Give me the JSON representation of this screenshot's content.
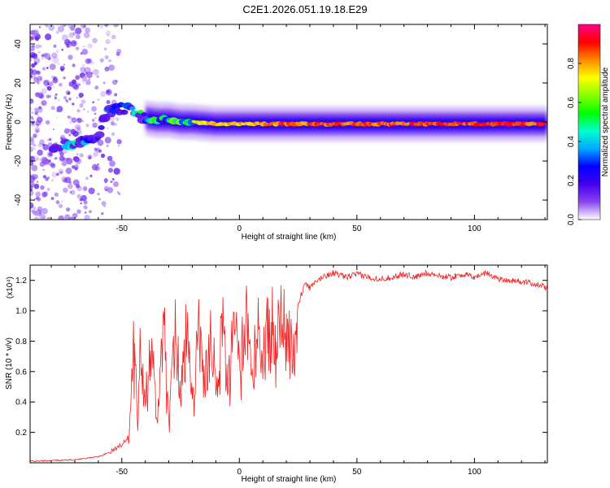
{
  "title": "C2E1.2026.051.19.18.E29",
  "colors": {
    "snr_line": "#ee2222",
    "axis": "#000000",
    "background": "#ffffff"
  },
  "chart_data": [
    {
      "type": "heatmap",
      "xlabel": "Height of straight line (km)",
      "ylabel": "Frequency (Hz)",
      "xlim": [
        -89,
        131
      ],
      "ylim": [
        -50,
        50
      ],
      "xticks": [
        -50,
        0,
        50,
        100
      ],
      "yticks": [
        -40,
        -20,
        0,
        20,
        40
      ],
      "colorbar": {
        "label": "Normalized spectral amplitude",
        "range": [
          0,
          1
        ],
        "ticks": [
          0.0,
          0.2,
          0.4,
          0.6,
          0.8
        ],
        "colormap": [
          "#ffffff",
          "#8844ee",
          "#4400ee",
          "#0000ff",
          "#00aaff",
          "#00ffcc",
          "#00ff00",
          "#88ff00",
          "#ffff00",
          "#ff8800",
          "#ff0000",
          "#ff0088"
        ]
      },
      "ridge": {
        "x": [
          -89,
          -80,
          -75,
          -70,
          -65,
          -60,
          -58,
          -55,
          -50,
          -45,
          -40,
          -35,
          -30,
          -25,
          -20,
          -10,
          0,
          10,
          20,
          30,
          50,
          80,
          110,
          131
        ],
        "freq": [
          -14,
          -13,
          -12,
          -11,
          -10,
          -9,
          3,
          5,
          7,
          6,
          2,
          1,
          1,
          0,
          0,
          -1,
          -1,
          -1,
          -1,
          -1,
          -1,
          -1,
          -1,
          -1
        ],
        "amplitude": [
          0.2,
          0.35,
          0.45,
          0.5,
          0.45,
          0.4,
          0.4,
          0.5,
          0.5,
          0.55,
          0.6,
          0.65,
          0.7,
          0.75,
          0.8,
          0.82,
          0.85,
          0.88,
          0.9,
          0.92,
          0.93,
          0.94,
          0.95,
          0.95
        ]
      }
    },
    {
      "type": "line",
      "xlabel": "Height of straight line (km)",
      "ylabel": "SNR (10 * v/v)",
      "scale_label": "(x10⁴)",
      "xlim": [
        -89,
        131
      ],
      "ylim": [
        0,
        1.3
      ],
      "xticks": [
        -50,
        0,
        50,
        100
      ],
      "yticks": [
        0.2,
        0.4,
        0.6,
        0.8,
        1.0,
        1.2
      ],
      "series": [
        {
          "x": [
            -89,
            -80,
            -70,
            -60,
            -55,
            -50,
            -47,
            -45,
            -43,
            -42,
            -40,
            -38,
            -35,
            -32,
            -30,
            -27,
            -25,
            -22,
            -20,
            -17,
            -15,
            -12,
            -10,
            -7,
            -5,
            -2,
            0,
            3,
            5,
            8,
            10,
            13,
            15,
            18,
            20,
            23,
            25,
            28,
            30,
            35,
            40,
            45,
            50,
            55,
            60,
            65,
            70,
            75,
            80,
            85,
            90,
            95,
            100,
            105,
            110,
            115,
            120,
            125,
            131
          ],
          "values": [
            0.01,
            0.015,
            0.02,
            0.04,
            0.07,
            0.12,
            0.18,
            0.9,
            0.3,
            1.07,
            0.45,
            0.95,
            0.4,
            1.0,
            0.3,
            1.1,
            0.5,
            1.15,
            0.4,
            1.1,
            0.55,
            0.9,
            0.65,
            1.05,
            0.6,
            1.0,
            0.7,
            1.12,
            0.75,
            1.05,
            0.8,
            1.2,
            0.85,
            1.1,
            0.95,
            1.1,
            1.05,
            1.18,
            1.15,
            1.22,
            1.25,
            1.22,
            1.24,
            1.22,
            1.21,
            1.22,
            1.24,
            1.22,
            1.25,
            1.23,
            1.22,
            1.24,
            1.22,
            1.25,
            1.21,
            1.2,
            1.19,
            1.18,
            1.15
          ]
        }
      ]
    }
  ]
}
